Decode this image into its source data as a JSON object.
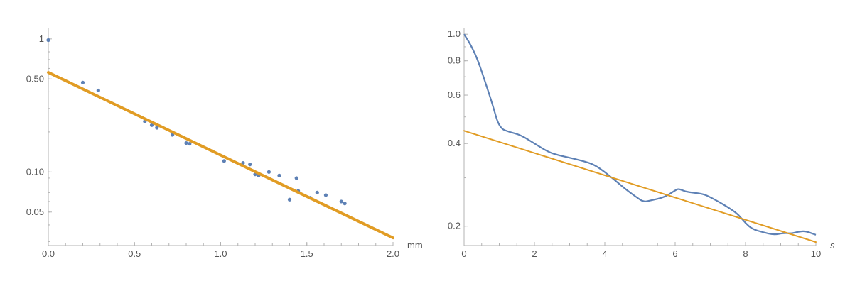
{
  "chart_data": [
    {
      "type": "scatter",
      "yscale": "log",
      "xlabel": "mm",
      "xlim": [
        0,
        2.0
      ],
      "ylim": [
        0.028,
        1.2
      ],
      "grid": false,
      "xticks": [
        "0.0",
        "0.5",
        "1.0",
        "1.5",
        "2.0"
      ],
      "xtick_values": [
        0,
        0.5,
        1.0,
        1.5,
        2.0
      ],
      "yticks": [
        "0.05",
        "0.10",
        "0.50",
        "1"
      ],
      "ytick_values": [
        0.05,
        0.1,
        0.5,
        1
      ],
      "colors": {
        "points": "#5e81b5",
        "fit": "#e19c24"
      },
      "series": [
        {
          "kind": "points",
          "x": [
            0.0,
            0.2,
            0.29,
            0.56,
            0.6,
            0.63,
            0.72,
            0.8,
            0.82,
            1.02,
            1.13,
            1.17,
            1.2,
            1.22,
            1.28,
            1.34,
            1.4,
            1.44,
            1.45,
            1.52,
            1.56,
            1.61,
            1.7,
            1.72
          ],
          "y": [
            0.98,
            0.47,
            0.41,
            0.24,
            0.225,
            0.215,
            0.19,
            0.165,
            0.163,
            0.121,
            0.117,
            0.114,
            0.096,
            0.094,
            0.1,
            0.094,
            0.062,
            0.09,
            0.072,
            0.064,
            0.07,
            0.067,
            0.06,
            0.058
          ]
        },
        {
          "kind": "line",
          "x": [
            0,
            2.0
          ],
          "y": [
            0.56,
            0.032
          ]
        }
      ]
    },
    {
      "type": "line",
      "yscale": "log",
      "xlabel": "s",
      "xlim": [
        0,
        10
      ],
      "ylim": [
        0.17,
        1.05
      ],
      "grid": false,
      "xticks": [
        "0",
        "2",
        "4",
        "6",
        "8",
        "10"
      ],
      "xtick_values": [
        0,
        2,
        4,
        6,
        8,
        10
      ],
      "yticks": [
        "0.2",
        "0.4",
        "0.6",
        "0.8",
        "1.0"
      ],
      "ytick_values": [
        0.2,
        0.4,
        0.6,
        0.8,
        1.0
      ],
      "colors": {
        "curve": "#5e81b5",
        "fit": "#e19c24"
      },
      "series": [
        {
          "kind": "curve",
          "x": [
            0,
            0.2,
            0.4,
            0.6,
            0.8,
            1.0,
            1.3,
            1.6,
            2.0,
            2.4,
            2.7,
            3.0,
            3.4,
            3.7,
            4.0,
            4.3,
            4.6,
            4.9,
            5.1,
            5.3,
            5.7,
            6.0,
            6.1,
            6.3,
            6.5,
            6.8,
            7.0,
            7.3,
            7.6,
            7.8,
            8.0,
            8.2,
            8.5,
            8.8,
            9.1,
            9.3,
            9.5,
            9.7,
            9.9,
            10.0
          ],
          "y": [
            1.0,
            0.91,
            0.8,
            0.67,
            0.56,
            0.455,
            0.44,
            0.43,
            0.4,
            0.372,
            0.362,
            0.355,
            0.345,
            0.335,
            0.315,
            0.293,
            0.272,
            0.255,
            0.245,
            0.248,
            0.255,
            0.27,
            0.274,
            0.267,
            0.265,
            0.262,
            0.255,
            0.243,
            0.23,
            0.22,
            0.205,
            0.195,
            0.19,
            0.186,
            0.189,
            0.188,
            0.191,
            0.192,
            0.188,
            0.186
          ]
        },
        {
          "kind": "line",
          "x": [
            0,
            10
          ],
          "y": [
            0.445,
            0.175
          ]
        }
      ]
    }
  ]
}
